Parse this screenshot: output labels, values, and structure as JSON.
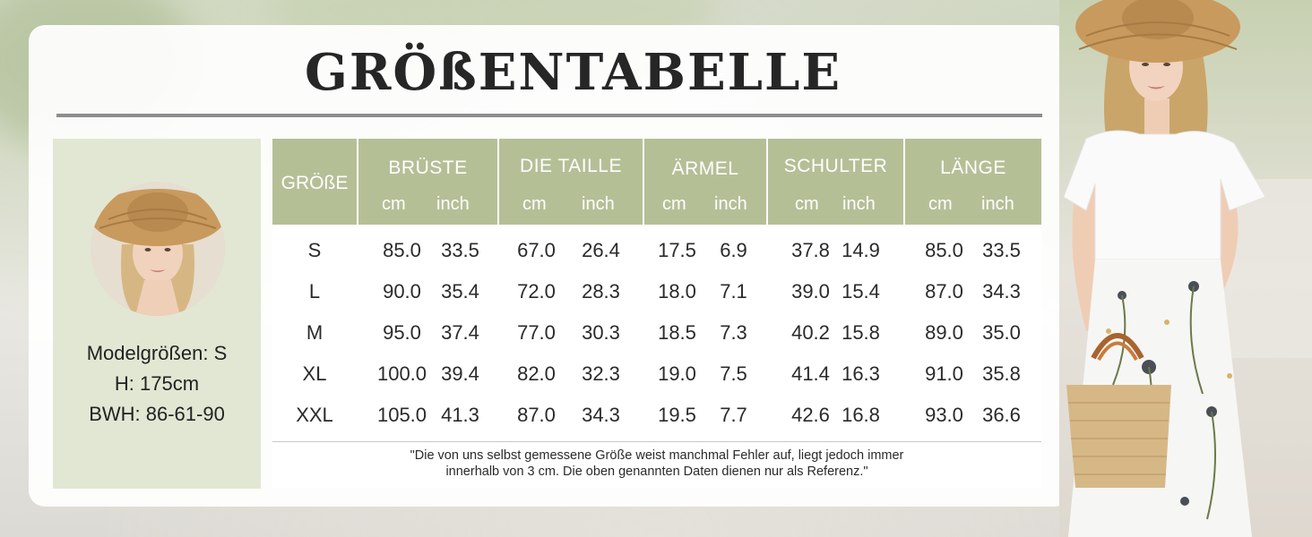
{
  "title": "GRÖßENTABELLE",
  "model": {
    "lines": [
      "Modelgrößen: S",
      "H: 175cm",
      "BWH: 86-61-90"
    ]
  },
  "table": {
    "size_header": "GRÖßE",
    "groups": [
      {
        "name": "BRÜSTE",
        "cm": "cm",
        "inch": "inch"
      },
      {
        "name": "DIE TAILLE",
        "cm": "cm",
        "inch": "inch"
      },
      {
        "name": "ÄRMEL",
        "cm": "cm",
        "inch": "inch"
      },
      {
        "name": "SCHULTER",
        "cm": "cm",
        "inch": "inch"
      },
      {
        "name": "LÄNGE",
        "cm": "cm",
        "inch": "inch"
      }
    ],
    "rows": [
      {
        "size": "S",
        "values": [
          "85.0",
          "33.5",
          "67.0",
          "26.4",
          "17.5",
          "6.9",
          "37.8",
          "14.9",
          "85.0",
          "33.5"
        ]
      },
      {
        "size": "L",
        "values": [
          "90.0",
          "35.4",
          "72.0",
          "28.3",
          "18.0",
          "7.1",
          "39.0",
          "15.4",
          "87.0",
          "34.3"
        ]
      },
      {
        "size": "M",
        "values": [
          "95.0",
          "37.4",
          "77.0",
          "30.3",
          "18.5",
          "7.3",
          "40.2",
          "15.8",
          "89.0",
          "35.0"
        ]
      },
      {
        "size": "XL",
        "values": [
          "100.0",
          "39.4",
          "82.0",
          "32.3",
          "19.0",
          "7.5",
          "41.4",
          "16.3",
          "91.0",
          "35.8"
        ]
      },
      {
        "size": "XXL",
        "values": [
          "105.0",
          "41.3",
          "87.0",
          "34.3",
          "19.5",
          "7.7",
          "42.6",
          "16.8",
          "93.0",
          "36.6"
        ]
      }
    ],
    "note_lines": [
      "\"Die von uns selbst gemessene Größe weist manchmal Fehler auf, liegt jedoch immer",
      "innerhalb von 3 cm. Die oben genannten Daten dienen nur als Referenz.\""
    ]
  },
  "colors": {
    "header_bg": "#b5bf96",
    "model_panel_bg": "#e2e7d3",
    "title_rule": "#8d8d8d"
  }
}
